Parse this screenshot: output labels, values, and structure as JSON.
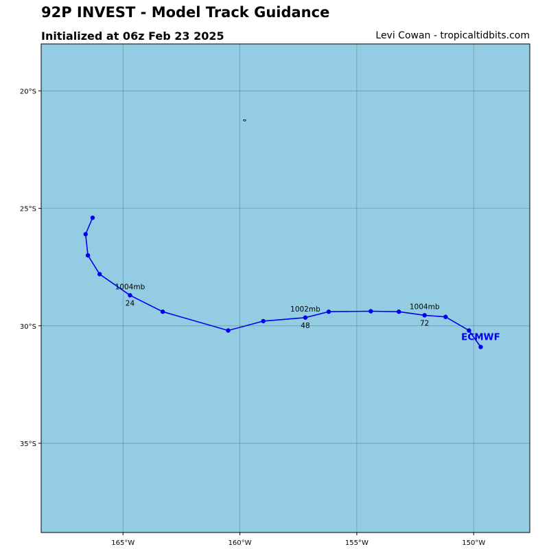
{
  "header": {
    "title": "92P INVEST - Model Track Guidance",
    "subtitle": "Initialized at 06z Feb 23 2025",
    "credit": "Levi Cowan - tropicaltidbits.com"
  },
  "map": {
    "lon_range": [
      -168.5,
      -147.6
    ],
    "lat_range": [
      -38.8,
      -18.0
    ],
    "ocean_color": "#94cde3",
    "grid": true,
    "lat_ticks": [
      {
        "value": -20,
        "label": "20°S"
      },
      {
        "value": -25,
        "label": "25°S"
      },
      {
        "value": -30,
        "label": "30°S"
      },
      {
        "value": -35,
        "label": "35°S"
      }
    ],
    "lon_ticks": [
      {
        "value": -165,
        "label": "165°W"
      },
      {
        "value": -160,
        "label": "160°W"
      },
      {
        "value": -155,
        "label": "155°W"
      },
      {
        "value": -150,
        "label": "150°W"
      }
    ],
    "islands": [
      {
        "lon": -159.8,
        "lat": -21.25
      }
    ]
  },
  "track": {
    "model": "ECMWF",
    "color": "#0000ee",
    "points": [
      {
        "lon": -166.3,
        "lat": -25.4
      },
      {
        "lon": -166.6,
        "lat": -26.1
      },
      {
        "lon": -166.5,
        "lat": -27.0
      },
      {
        "lon": -166.0,
        "lat": -27.8
      },
      {
        "lon": -164.7,
        "lat": -28.7
      },
      {
        "lon": -163.3,
        "lat": -29.4
      },
      {
        "lon": -160.5,
        "lat": -30.2
      },
      {
        "lon": -159.0,
        "lat": -29.8
      },
      {
        "lon": -157.2,
        "lat": -29.65
      },
      {
        "lon": -156.2,
        "lat": -29.4
      },
      {
        "lon": -154.4,
        "lat": -29.38
      },
      {
        "lon": -153.2,
        "lat": -29.4
      },
      {
        "lon": -152.1,
        "lat": -29.55
      },
      {
        "lon": -151.2,
        "lat": -29.62
      },
      {
        "lon": -150.2,
        "lat": -30.2
      },
      {
        "lon": -149.7,
        "lat": -30.9
      }
    ],
    "annotations": [
      {
        "point_index": 4,
        "pressure": "1004mb",
        "hour": "24"
      },
      {
        "point_index": 8,
        "pressure": "1002mb",
        "hour": "48"
      },
      {
        "point_index": 12,
        "pressure": "1004mb",
        "hour": "72"
      }
    ]
  }
}
